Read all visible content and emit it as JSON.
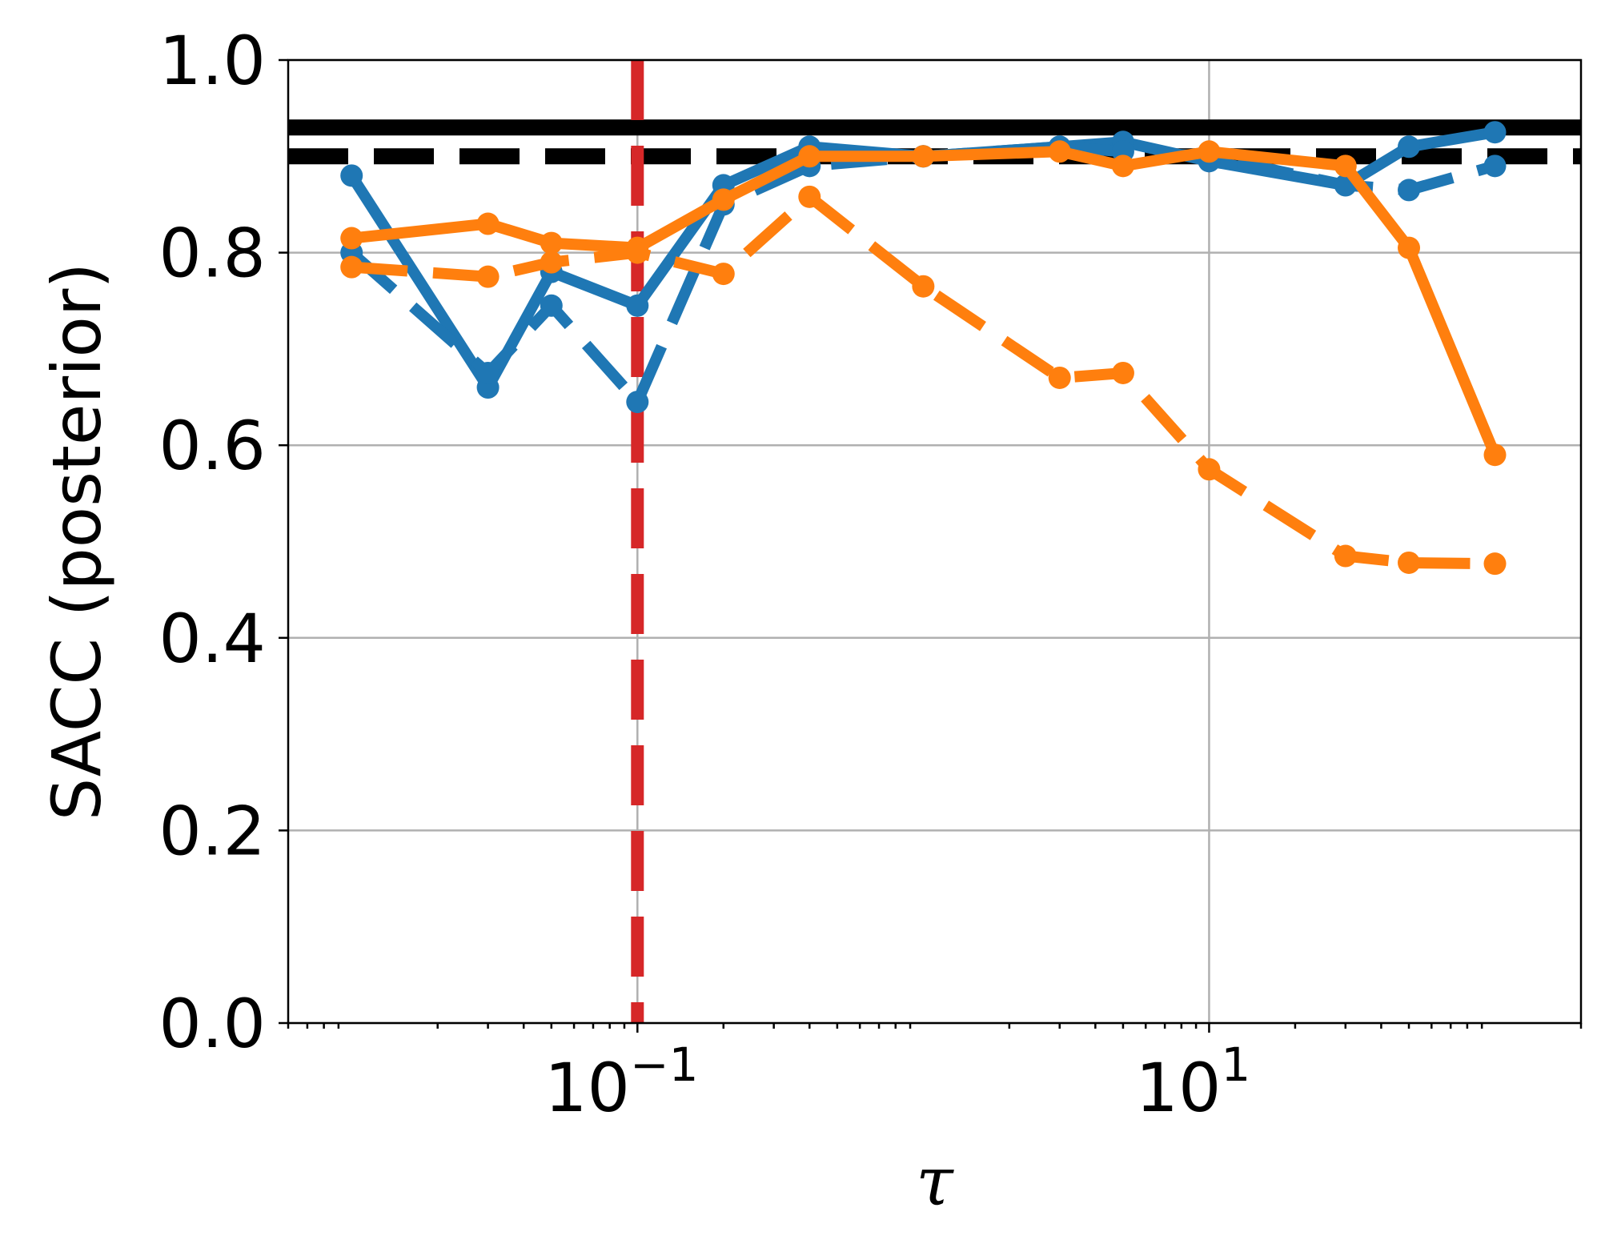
{
  "chart_data": {
    "type": "line",
    "xlabel": "τ",
    "ylabel": "SACC (posterior)",
    "xscale": "log",
    "xlim": [
      0.006,
      200
    ],
    "ylim": [
      0.0,
      1.0
    ],
    "yticks": [
      "0.0",
      "0.2",
      "0.4",
      "0.6",
      "0.8",
      "1.0"
    ],
    "xticks": [
      {
        "base": "10",
        "exp": "−1",
        "value": 0.1
      },
      {
        "base": "10",
        "exp": "1",
        "value": 10
      }
    ],
    "grid": true,
    "reference_lines": {
      "horizontal": [
        {
          "y": 0.93,
          "color": "#000000",
          "style": "solid"
        },
        {
          "y": 0.9,
          "color": "#000000",
          "style": "dashed"
        }
      ],
      "vertical": [
        {
          "x": 0.1,
          "color": "#d62728",
          "style": "dashed"
        }
      ]
    },
    "series": [
      {
        "color": "#1f77b4",
        "style": "solid",
        "x": [
          0.01,
          0.03,
          0.05,
          0.1,
          0.2,
          0.4,
          1,
          3,
          5,
          10,
          30,
          50,
          100
        ],
        "y": [
          0.88,
          0.66,
          0.78,
          0.745,
          0.87,
          0.91,
          0.9,
          0.91,
          0.915,
          0.895,
          0.87,
          0.91,
          0.925
        ]
      },
      {
        "color": "#1f77b4",
        "style": "dashed",
        "x": [
          0.01,
          0.03,
          0.05,
          0.1,
          0.2,
          0.4,
          1,
          3,
          5,
          10,
          30,
          50,
          100
        ],
        "y": [
          0.8,
          0.675,
          0.745,
          0.645,
          0.85,
          0.89,
          0.9,
          0.91,
          0.905,
          0.9,
          0.87,
          0.865,
          0.89
        ]
      },
      {
        "color": "#ff7f0e",
        "style": "solid",
        "x": [
          0.01,
          0.03,
          0.05,
          0.1,
          0.2,
          0.4,
          1,
          3,
          5,
          10,
          30,
          50,
          100
        ],
        "y": [
          0.815,
          0.83,
          0.81,
          0.805,
          0.855,
          0.9,
          0.9,
          0.905,
          0.89,
          0.905,
          0.89,
          0.805,
          0.59
        ]
      },
      {
        "color": "#ff7f0e",
        "style": "dashed",
        "x": [
          0.01,
          0.03,
          0.05,
          0.1,
          0.2,
          0.4,
          1,
          3,
          5,
          10,
          30,
          50,
          100
        ],
        "y": [
          0.785,
          0.775,
          0.79,
          0.8,
          0.778,
          0.858,
          0.765,
          0.67,
          0.675,
          0.575,
          0.485,
          0.478,
          0.477
        ]
      }
    ]
  }
}
